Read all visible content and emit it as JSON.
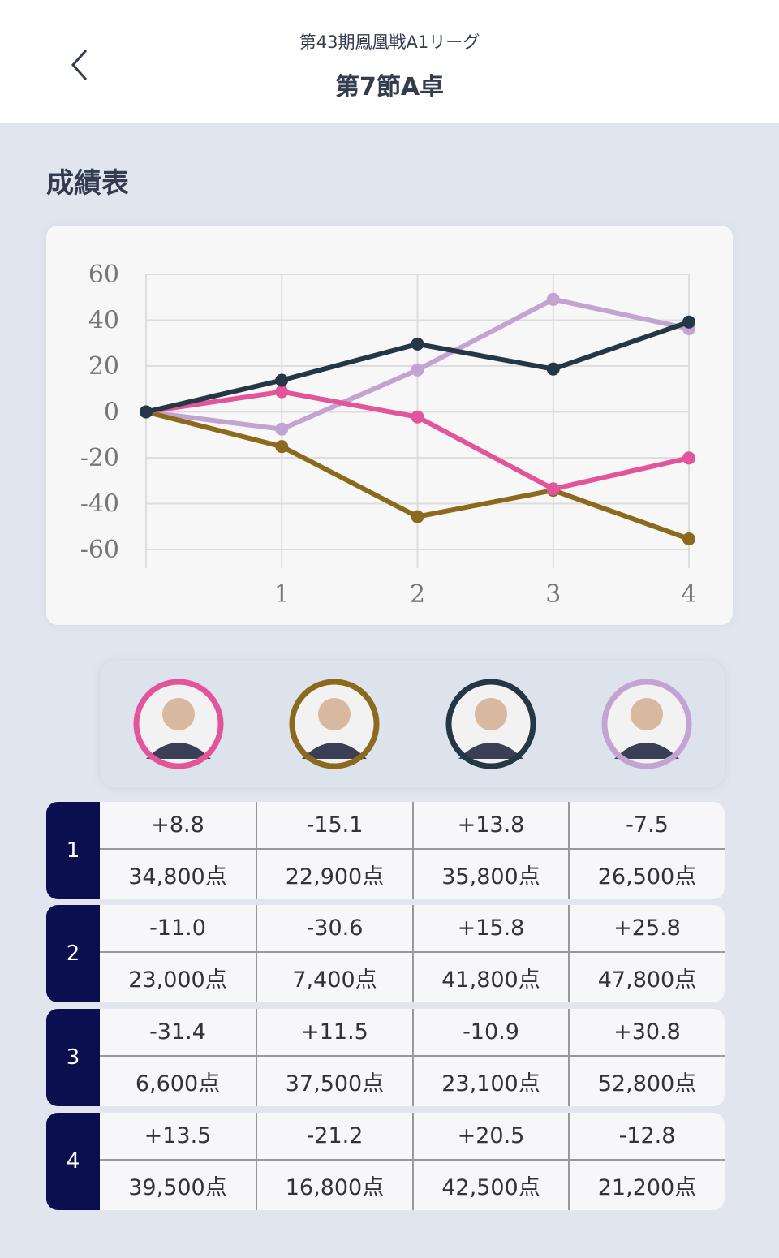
{
  "header": {
    "subtitle": "第43期鳳凰戦A1リーグ",
    "title": "第7節A卓"
  },
  "section_title": "成績表",
  "chart_data": {
    "type": "line",
    "x": [
      0,
      1,
      2,
      3,
      4
    ],
    "xlim": [
      0,
      4
    ],
    "xticks": [
      1,
      2,
      3,
      4
    ],
    "ylim": [
      -60,
      60
    ],
    "yticks": [
      -60,
      -40,
      -20,
      0,
      20,
      40,
      60
    ],
    "grid": true,
    "series": [
      {
        "color": "#c3a3d1",
        "values": [
          0,
          -7.5,
          18.3,
          49.1,
          36.3
        ]
      },
      {
        "color": "#8b6a1e",
        "values": [
          0,
          -15.1,
          -45.7,
          -34.2,
          -55.4
        ]
      },
      {
        "color": "#e2559a",
        "values": [
          0,
          8.8,
          -2.2,
          -33.6,
          -20.1
        ]
      },
      {
        "color": "#253645",
        "values": [
          0,
          13.8,
          29.6,
          18.7,
          39.2
        ]
      }
    ]
  },
  "players": [
    {
      "color": "#e2559a"
    },
    {
      "color": "#8b6a1e"
    },
    {
      "color": "#253645"
    },
    {
      "color": "#c3a3d1"
    }
  ],
  "table": {
    "rows": [
      {
        "round": 1,
        "scores": [
          "+8.8",
          "-15.1",
          "+13.8",
          "-7.5"
        ],
        "points": [
          "34,800点",
          "22,900点",
          "35,800点",
          "26,500点"
        ]
      },
      {
        "round": 2,
        "scores": [
          "-11.0",
          "-30.6",
          "+15.8",
          "+25.8"
        ],
        "points": [
          "23,000点",
          "7,400点",
          "41,800点",
          "47,800点"
        ]
      },
      {
        "round": 3,
        "scores": [
          "-31.4",
          "+11.5",
          "-10.9",
          "+30.8"
        ],
        "points": [
          "6,600点",
          "37,500点",
          "23,100点",
          "52,800点"
        ]
      },
      {
        "round": 4,
        "scores": [
          "+13.5",
          "-21.2",
          "+20.5",
          "-12.8"
        ],
        "points": [
          "39,500点",
          "16,800点",
          "42,500点",
          "21,200点"
        ]
      }
    ]
  }
}
